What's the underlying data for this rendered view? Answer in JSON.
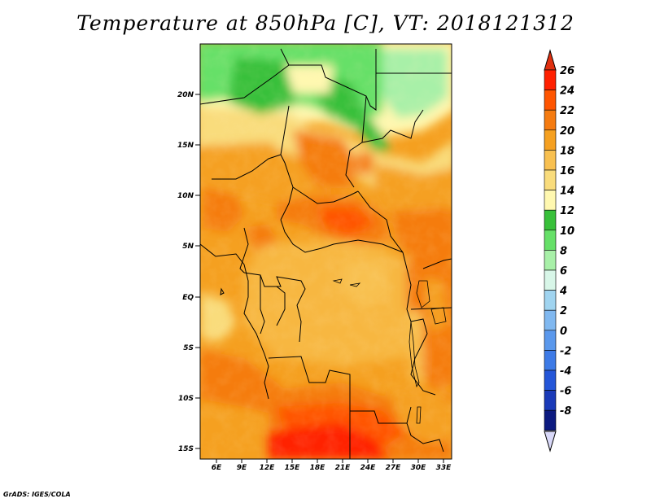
{
  "header": {
    "title": "Temperature at 850hPa [C], VT: 2018121312"
  },
  "footer": {
    "credit": "GrADS: IGES/COLA"
  },
  "map": {
    "region": "Central Africa",
    "lon_range": [
      4,
      34
    ],
    "lat_range": [
      -16,
      25
    ],
    "lon_ticks": [
      "6E",
      "9E",
      "12E",
      "15E",
      "18E",
      "21E",
      "24E",
      "27E",
      "30E",
      "33E"
    ],
    "lat_ticks": [
      "20N",
      "15N",
      "10N",
      "5N",
      "EQ",
      "5S",
      "10S",
      "15S"
    ]
  },
  "colorbar": {
    "levels": [
      "26",
      "24",
      "22",
      "20",
      "18",
      "16",
      "14",
      "12",
      "10",
      "8",
      "6",
      "4",
      "2",
      "0",
      "-2",
      "-4",
      "-6",
      "-8"
    ],
    "colors": [
      "#ff2000",
      "#ff5500",
      "#f57b10",
      "#f5a020",
      "#f8c050",
      "#f9dc7c",
      "#fff8b0",
      "#38c03a",
      "#66e068",
      "#a8f0a8",
      "#d8f6e8",
      "#a0d4f0",
      "#80b8f0",
      "#5a98ec",
      "#3d7ae6",
      "#2456d8",
      "#1a3ab8",
      "#0c1a80"
    ],
    "over_color": "#e03010",
    "under_color": "#d8d8f8"
  }
}
